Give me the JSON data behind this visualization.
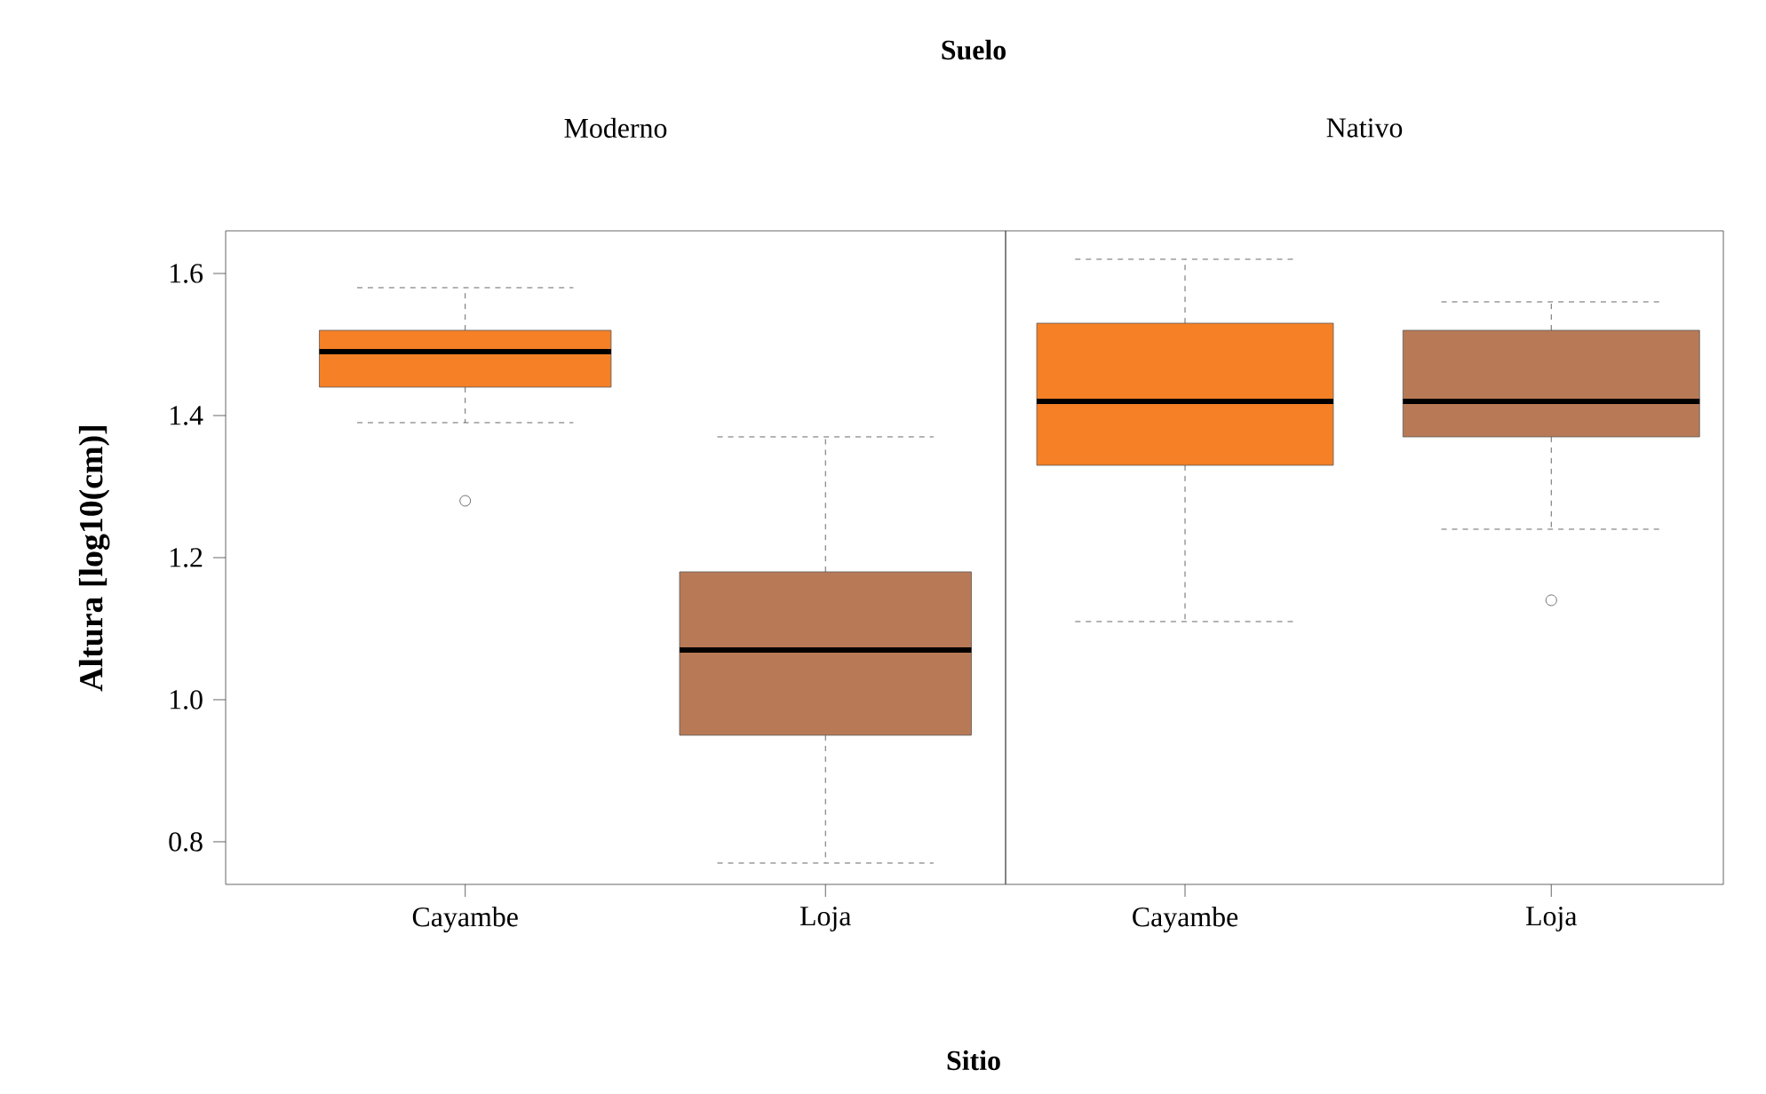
{
  "chart_data": [
    {
      "type": "box",
      "title": "Suelo",
      "subtitle": "Moderno",
      "xlabel": "Sitio",
      "ylabel": "Altura [log10(cm)]",
      "categories": [
        "Cayambe",
        "Loja"
      ],
      "colors": [
        "#f58025",
        "#b87a56"
      ],
      "boxes": [
        {
          "low": 1.39,
          "q1": 1.44,
          "median": 1.49,
          "q3": 1.52,
          "high": 1.58,
          "outliers": [
            1.28
          ]
        },
        {
          "low": 0.77,
          "q1": 0.95,
          "median": 1.07,
          "q3": 1.18,
          "high": 1.37
        }
      ],
      "ylim": [
        0.74,
        1.66
      ],
      "yticks": [
        0.8,
        {
          "value": 1.0,
          "label": "1.0"
        },
        1.2,
        1.4,
        1.6
      ]
    },
    {
      "type": "box",
      "subtitle": "Nativo",
      "categories": [
        "Cayambe",
        "Loja"
      ],
      "colors": [
        "#f58025",
        "#b87a56"
      ],
      "boxes": [
        {
          "low": 1.11,
          "q1": 1.33,
          "median": 1.42,
          "q3": 1.53,
          "high": 1.62
        },
        {
          "low": 1.24,
          "q1": 1.37,
          "median": 1.42,
          "q3": 1.52,
          "high": 1.56,
          "outliers": [
            1.14
          ]
        }
      ],
      "ylim": [
        0.74,
        1.66
      ],
      "tick_labels": "x"
    }
  ]
}
